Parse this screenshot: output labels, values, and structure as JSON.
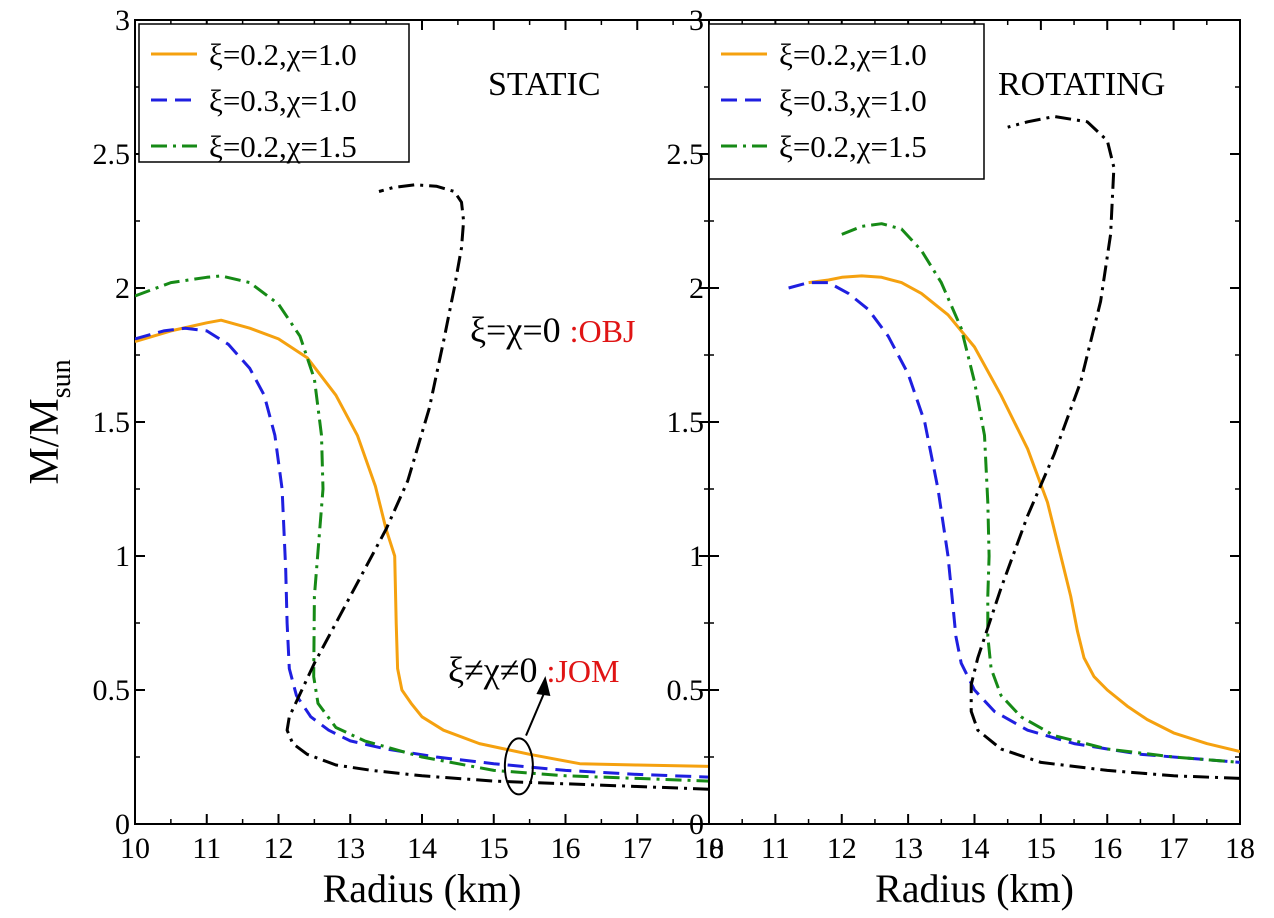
{
  "chart_data": [
    {
      "type": "line",
      "panel": "left",
      "annotation": "STATIC",
      "xlabel": "Radius (km)",
      "ylabel_main": "M/M",
      "ylabel_sub": "sun",
      "xlim": [
        10,
        18
      ],
      "ylim": [
        0,
        3
      ],
      "xticks": [
        "10",
        "11",
        "12",
        "13",
        "14",
        "15",
        "16",
        "17",
        "18"
      ],
      "yticks": [
        "0",
        "0.5",
        "1",
        "1.5",
        "2",
        "2.5",
        "3"
      ],
      "legend_position": "top-left",
      "series": [
        {
          "name": "ξ=0.2,χ=1.0",
          "color": "#f5a10f",
          "dash": "solid",
          "x": [
            10.0,
            10.5,
            11.0,
            11.2,
            11.6,
            12.0,
            12.4,
            12.8,
            13.1,
            13.35,
            13.5,
            13.62,
            13.64,
            13.66,
            13.72,
            13.85,
            14.0,
            14.3,
            14.8,
            15.5,
            16.2,
            17.0,
            18.0
          ],
          "y": [
            1.8,
            1.84,
            1.87,
            1.88,
            1.85,
            1.81,
            1.74,
            1.6,
            1.45,
            1.26,
            1.1,
            1.0,
            0.75,
            0.58,
            0.5,
            0.45,
            0.4,
            0.35,
            0.3,
            0.26,
            0.225,
            0.22,
            0.215
          ]
        },
        {
          "name": "ξ=0.3,χ=1.0",
          "color": "#1f1fe0",
          "dash": "dashed",
          "x": [
            10.0,
            10.4,
            10.7,
            11.0,
            11.3,
            11.6,
            11.8,
            11.95,
            12.05,
            12.1,
            12.12,
            12.15,
            12.25,
            12.45,
            12.7,
            13.0,
            13.5,
            14.2,
            15.0,
            16.0,
            17.0,
            18.0
          ],
          "y": [
            1.81,
            1.84,
            1.85,
            1.84,
            1.79,
            1.7,
            1.6,
            1.45,
            1.25,
            0.95,
            0.75,
            0.58,
            0.48,
            0.4,
            0.35,
            0.31,
            0.28,
            0.25,
            0.225,
            0.2,
            0.185,
            0.175
          ]
        },
        {
          "name": "ξ=0.2,χ=1.5",
          "color": "#168a16",
          "dash": "dashdot",
          "x": [
            10.0,
            10.5,
            11.0,
            11.2,
            11.6,
            12.0,
            12.3,
            12.5,
            12.6,
            12.62,
            12.56,
            12.5,
            12.49,
            12.55,
            12.8,
            13.2,
            14.0,
            15.0,
            16.0,
            17.0,
            18.0
          ],
          "y": [
            1.97,
            2.02,
            2.04,
            2.045,
            2.02,
            1.94,
            1.82,
            1.66,
            1.45,
            1.25,
            1.05,
            0.85,
            0.55,
            0.45,
            0.36,
            0.31,
            0.25,
            0.2,
            0.18,
            0.17,
            0.16
          ]
        },
        {
          "name": "ξ=χ=0",
          "color": "#000000",
          "dash": "dashdot",
          "x": [
            18.0,
            17.0,
            16.0,
            15.0,
            14.0,
            13.3,
            12.8,
            12.4,
            12.2,
            12.12,
            12.15,
            12.5,
            13.0,
            13.5,
            13.8,
            14.1,
            14.3,
            14.45,
            14.55,
            14.58,
            14.55,
            14.45,
            14.2,
            13.9,
            13.6,
            13.4
          ],
          "y": [
            0.13,
            0.14,
            0.15,
            0.16,
            0.18,
            0.2,
            0.22,
            0.26,
            0.3,
            0.35,
            0.4,
            0.6,
            0.85,
            1.1,
            1.28,
            1.55,
            1.8,
            2.0,
            2.15,
            2.25,
            2.32,
            2.36,
            2.38,
            2.385,
            2.375,
            2.36
          ]
        }
      ],
      "curve_label_main": "ξ=χ=0",
      "curve_label_tag": ":OBJ",
      "family_label_main": "ξ≠χ≠0",
      "family_label_tag": ":JOM"
    },
    {
      "type": "line",
      "panel": "right",
      "annotation": "ROTATING",
      "xlabel": "Radius (km)",
      "xlim": [
        10,
        18
      ],
      "ylim": [
        0,
        3
      ],
      "xticks": [
        "10",
        "11",
        "12",
        "13",
        "14",
        "15",
        "16",
        "17",
        "18"
      ],
      "yticks": [
        "0",
        "0.5",
        "1",
        "1.5",
        "2",
        "2.5",
        "3"
      ],
      "legend_position": "top-left",
      "series": [
        {
          "name": "ξ=0.2,χ=1.0",
          "color": "#f5a10f",
          "dash": "solid",
          "x": [
            11.5,
            11.8,
            12.0,
            12.3,
            12.6,
            12.9,
            13.2,
            13.6,
            14.0,
            14.4,
            14.8,
            15.1,
            15.3,
            15.45,
            15.55,
            15.65,
            15.8,
            16.0,
            16.3,
            16.6,
            17.0,
            17.5,
            18.0
          ],
          "y": [
            2.02,
            2.03,
            2.04,
            2.045,
            2.04,
            2.02,
            1.98,
            1.9,
            1.78,
            1.6,
            1.4,
            1.2,
            1.0,
            0.85,
            0.72,
            0.62,
            0.55,
            0.5,
            0.44,
            0.39,
            0.34,
            0.3,
            0.27
          ]
        },
        {
          "name": "ξ=0.3,χ=1.0",
          "color": "#1f1fe0",
          "dash": "dashed",
          "x": [
            11.2,
            11.5,
            11.8,
            12.1,
            12.4,
            12.7,
            13.0,
            13.25,
            13.45,
            13.6,
            13.68,
            13.72,
            13.8,
            14.0,
            14.3,
            14.8,
            15.5,
            16.5,
            17.5,
            18.0
          ],
          "y": [
            2.0,
            2.02,
            2.02,
            1.98,
            1.92,
            1.82,
            1.68,
            1.5,
            1.25,
            1.0,
            0.8,
            0.7,
            0.6,
            0.5,
            0.42,
            0.35,
            0.3,
            0.26,
            0.24,
            0.23
          ]
        },
        {
          "name": "ξ=0.2,χ=1.5",
          "color": "#168a16",
          "dash": "dashdot",
          "x": [
            12.0,
            12.3,
            12.6,
            12.9,
            13.2,
            13.5,
            13.8,
            14.0,
            14.15,
            14.2,
            14.22,
            14.2,
            14.2,
            14.25,
            14.4,
            14.7,
            15.2,
            16.0,
            17.0,
            18.0
          ],
          "y": [
            2.2,
            2.23,
            2.24,
            2.22,
            2.14,
            2.02,
            1.85,
            1.65,
            1.45,
            1.2,
            1.0,
            0.85,
            0.7,
            0.58,
            0.48,
            0.4,
            0.33,
            0.28,
            0.25,
            0.23
          ]
        },
        {
          "name": "ξ=χ=0",
          "color": "#000000",
          "dash": "dashdot",
          "x": [
            18.0,
            17.0,
            16.0,
            15.0,
            14.4,
            14.05,
            13.95,
            13.95,
            14.05,
            14.4,
            14.8,
            15.2,
            15.6,
            15.9,
            16.05,
            16.1,
            16.0,
            15.7,
            15.2,
            14.8,
            14.5
          ],
          "y": [
            0.17,
            0.18,
            0.2,
            0.23,
            0.28,
            0.35,
            0.42,
            0.52,
            0.62,
            0.88,
            1.15,
            1.38,
            1.65,
            1.95,
            2.2,
            2.45,
            2.55,
            2.62,
            2.64,
            2.62,
            2.6
          ]
        }
      ]
    }
  ]
}
